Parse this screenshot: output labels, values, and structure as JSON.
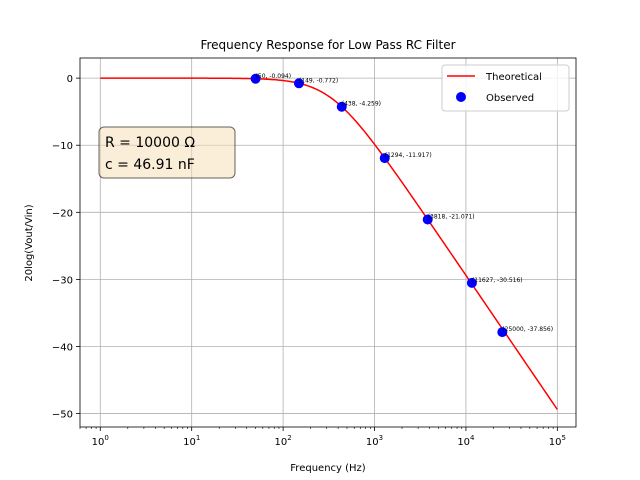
{
  "chart_data": {
    "type": "line",
    "title": "Frequency Response for Low Pass RC Filter",
    "xlabel": "Frequency (Hz)",
    "ylabel": "20log(Vout/Vin)",
    "xscale": "log",
    "xlim": [
      0.6,
      160000
    ],
    "ylim": [
      -52,
      3
    ],
    "grid": true,
    "x_ticks": [
      {
        "value": 1,
        "base": "10",
        "exp": "0"
      },
      {
        "value": 10,
        "base": "10",
        "exp": "1"
      },
      {
        "value": 100,
        "base": "10",
        "exp": "2"
      },
      {
        "value": 1000,
        "base": "10",
        "exp": "3"
      },
      {
        "value": 10000,
        "base": "10",
        "exp": "4"
      },
      {
        "value": 100000,
        "base": "10",
        "exp": "5"
      }
    ],
    "y_ticks": [
      {
        "value": 0,
        "label": "0"
      },
      {
        "value": -10,
        "label": "−10"
      },
      {
        "value": -20,
        "label": "−20"
      },
      {
        "value": -30,
        "label": "−30"
      },
      {
        "value": -40,
        "label": "−40"
      },
      {
        "value": -50,
        "label": "−50"
      }
    ],
    "series": [
      {
        "name": "Theoretical",
        "kind": "line",
        "color": "#ff0000",
        "model": "rc_lowpass",
        "x_range": [
          1,
          100000
        ],
        "R_ohm": 10000,
        "C_farad": 4.691e-08
      },
      {
        "name": "Observed",
        "kind": "scatter",
        "color": "#0000ff",
        "points": [
          {
            "x": 50,
            "y": -0.094,
            "label": "(50, -0.094)"
          },
          {
            "x": 149,
            "y": -0.772,
            "label": "(149, -0.772)"
          },
          {
            "x": 438,
            "y": -4.259,
            "label": "(438, -4.259)"
          },
          {
            "x": 1294,
            "y": -11.917,
            "label": "(1294, -11.917)"
          },
          {
            "x": 3818,
            "y": -21.071,
            "label": "(3818, -21.071)"
          },
          {
            "x": 11627,
            "y": -30.516,
            "label": "(11627, -30.516)"
          },
          {
            "x": 25000,
            "y": -37.856,
            "label": "(25000, -37.856)"
          }
        ]
      }
    ],
    "legend": {
      "location": "top-right",
      "entries": [
        "Theoretical",
        "Observed"
      ]
    },
    "annotation": {
      "lines": [
        "R = 10000 Ω",
        "c = 46.91 nF"
      ],
      "location": "upper-left",
      "background": "#f5deb3"
    }
  }
}
